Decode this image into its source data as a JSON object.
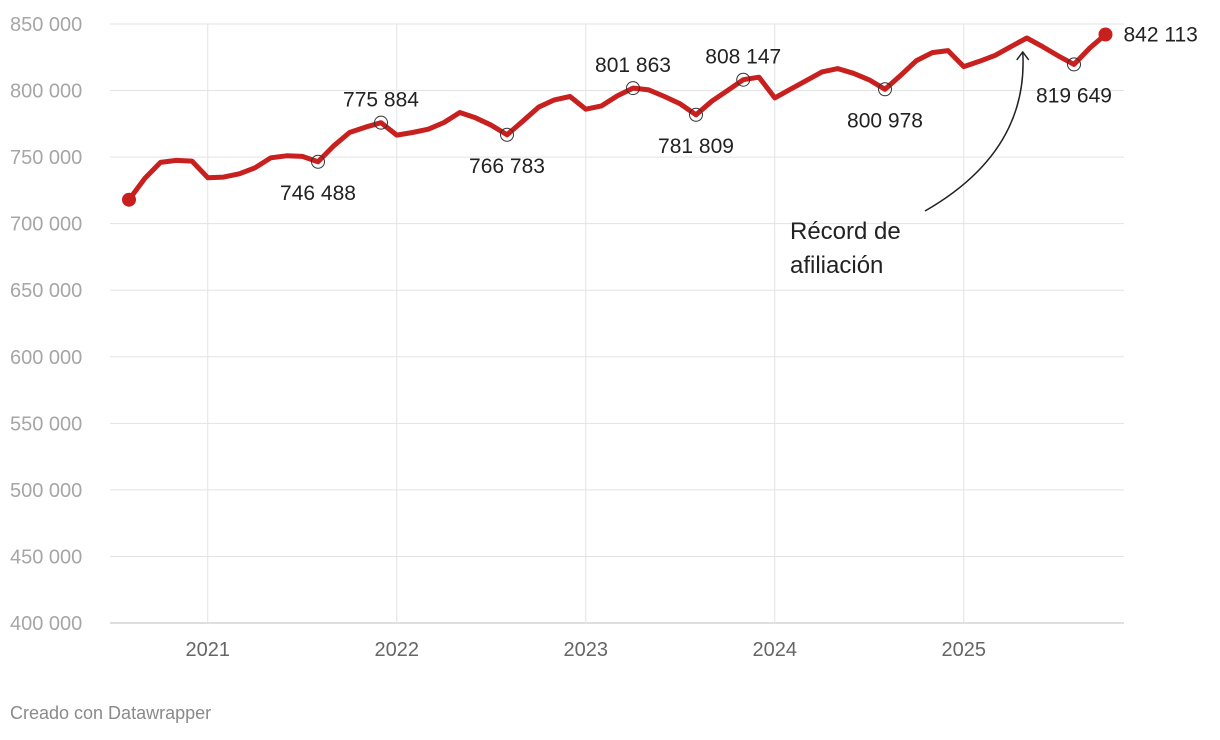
{
  "chart_data": {
    "type": "line",
    "title": "",
    "xlabel": "",
    "ylabel": "",
    "ylim": [
      400000,
      850000
    ],
    "y_ticks": [
      "400 000",
      "450 000",
      "500 000",
      "550 000",
      "600 000",
      "650 000",
      "700 000",
      "750 000",
      "800 000",
      "850 000"
    ],
    "x_ticks": [
      "2021",
      "2022",
      "2023",
      "2024",
      "2025"
    ],
    "grid": true,
    "line_color": "#c8201f",
    "series": [
      {
        "x": [
          "2020-08",
          "2020-09",
          "2020-10",
          "2020-11",
          "2020-12",
          "2021-01",
          "2021-02",
          "2021-03",
          "2021-04",
          "2021-05",
          "2021-06",
          "2021-07",
          "2021-08",
          "2021-09",
          "2021-10",
          "2021-11",
          "2021-12",
          "2022-01",
          "2022-02",
          "2022-03",
          "2022-04",
          "2022-05",
          "2022-06",
          "2022-07",
          "2022-08",
          "2022-09",
          "2022-10",
          "2022-11",
          "2022-12",
          "2023-01",
          "2023-02",
          "2023-03",
          "2023-04",
          "2023-05",
          "2023-06",
          "2023-07",
          "2023-08",
          "2023-09",
          "2023-10",
          "2023-11",
          "2023-12",
          "2024-01",
          "2024-02",
          "2024-03",
          "2024-04",
          "2024-05",
          "2024-06",
          "2024-07",
          "2024-08",
          "2024-09",
          "2024-10",
          "2024-11",
          "2024-12",
          "2025-01",
          "2025-02",
          "2025-03",
          "2025-04",
          "2025-05",
          "2025-06",
          "2025-07",
          "2025-08",
          "2025-09",
          "2025-10"
        ],
        "values": [
          718000,
          734000,
          746000,
          747500,
          747000,
          734500,
          735000,
          737500,
          742000,
          749500,
          751000,
          750500,
          746488,
          758500,
          768500,
          772500,
          775884,
          766500,
          768500,
          771000,
          776000,
          783500,
          779500,
          774000,
          766783,
          777000,
          787500,
          793000,
          795500,
          786000,
          788500,
          796000,
          801863,
          800500,
          795500,
          790000,
          781809,
          792000,
          800000,
          808147,
          810000,
          794500,
          801000,
          807500,
          814000,
          816500,
          813000,
          808000,
          800978,
          811500,
          822500,
          828500,
          830000,
          818000,
          822000,
          826500,
          833000,
          839500,
          833000,
          826000,
          819649,
          832000,
          842113
        ]
      }
    ],
    "data_labels": [
      {
        "x": "2021-08",
        "value": 746488,
        "text": "746 488"
      },
      {
        "x": "2021-12",
        "value": 775884,
        "text": "775 884"
      },
      {
        "x": "2022-08",
        "value": 766783,
        "text": "766 783"
      },
      {
        "x": "2023-04",
        "value": 801863,
        "text": "801 863"
      },
      {
        "x": "2023-08",
        "value": 781809,
        "text": "781 809"
      },
      {
        "x": "2023-11",
        "value": 808147,
        "text": "808 147"
      },
      {
        "x": "2024-08",
        "value": 800978,
        "text": "800 978"
      },
      {
        "x": "2025-08",
        "value": 819649,
        "text": "819 649"
      },
      {
        "x": "2025-10",
        "value": 842113,
        "text": "842 113"
      }
    ],
    "annotations": [
      {
        "lines": [
          "Récord de",
          "afiliación"
        ],
        "points_to": {
          "x": "2025-05",
          "value": 839500
        }
      }
    ]
  },
  "credit": "Creado con Datawrapper"
}
